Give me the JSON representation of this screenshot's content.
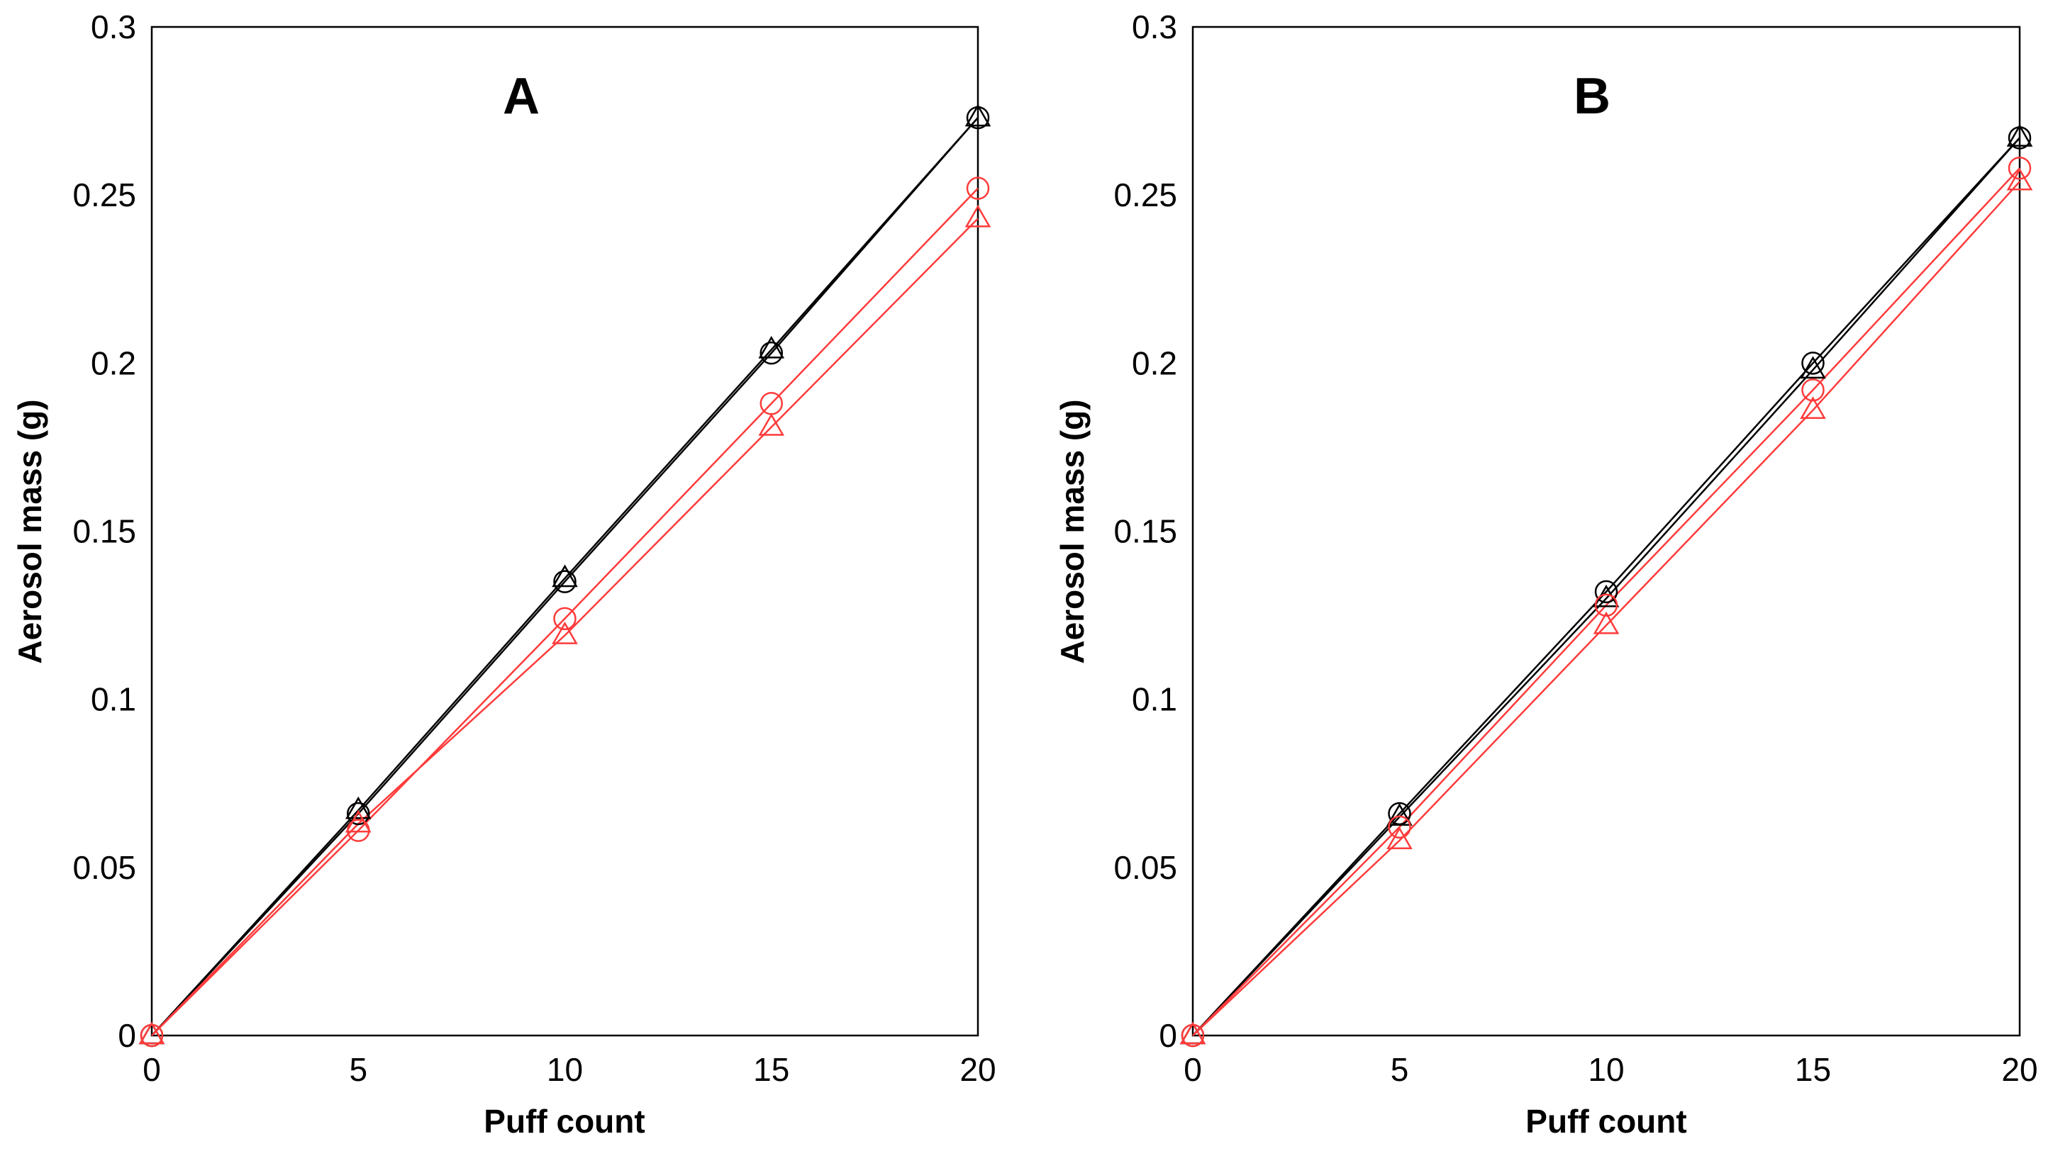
{
  "chart_data": [
    {
      "type": "line",
      "title": "A",
      "xlabel": "Puff count",
      "ylabel": "Aerosol mass (g)",
      "xlim": [
        0,
        20
      ],
      "ylim": [
        0,
        0.3
      ],
      "x_ticks": [
        "0",
        "5",
        "10",
        "15",
        "20"
      ],
      "y_ticks": [
        "0",
        "0.05",
        "0.1",
        "0.15",
        "0.2",
        "0.25",
        "0.3"
      ],
      "grid": false,
      "x": [
        0,
        5,
        10,
        15,
        20
      ],
      "series": [
        {
          "name": "black-circle",
          "color": "#000000",
          "marker": "circle",
          "values": [
            0,
            0.066,
            0.135,
            0.203,
            0.273
          ]
        },
        {
          "name": "black-triangle",
          "color": "#000000",
          "marker": "triangle",
          "values": [
            0,
            0.067,
            0.136,
            0.204,
            0.273
          ]
        },
        {
          "name": "red-circle",
          "color": "#ff3b3b",
          "marker": "circle",
          "values": [
            0,
            0.061,
            0.124,
            0.188,
            0.252
          ]
        },
        {
          "name": "red-triangle",
          "color": "#ff3b3b",
          "marker": "triangle",
          "values": [
            0,
            0.063,
            0.119,
            0.181,
            0.243
          ]
        }
      ]
    },
    {
      "type": "line",
      "title": "B",
      "xlabel": "Puff count",
      "ylabel": "Aerosol mass (g)",
      "xlim": [
        0,
        20
      ],
      "ylim": [
        0,
        0.3
      ],
      "x_ticks": [
        "0",
        "5",
        "10",
        "15",
        "20"
      ],
      "y_ticks": [
        "0",
        "0.05",
        "0.1",
        "0.15",
        "0.2",
        "0.25",
        "0.3"
      ],
      "grid": false,
      "x": [
        0,
        5,
        10,
        15,
        20
      ],
      "series": [
        {
          "name": "black-circle",
          "color": "#000000",
          "marker": "circle",
          "values": [
            0,
            0.066,
            0.132,
            0.2,
            0.267
          ]
        },
        {
          "name": "black-triangle",
          "color": "#000000",
          "marker": "triangle",
          "values": [
            0,
            0.065,
            0.13,
            0.198,
            0.267
          ]
        },
        {
          "name": "red-circle",
          "color": "#ff3b3b",
          "marker": "circle",
          "values": [
            0,
            0.062,
            0.128,
            0.192,
            0.258
          ]
        },
        {
          "name": "red-triangle",
          "color": "#ff3b3b",
          "marker": "triangle",
          "values": [
            0,
            0.058,
            0.122,
            0.186,
            0.254
          ]
        }
      ]
    }
  ]
}
